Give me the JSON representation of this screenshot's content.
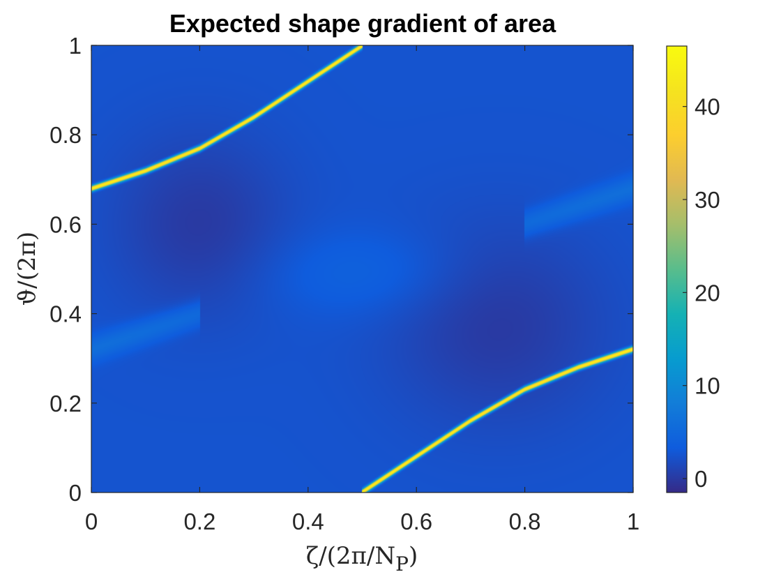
{
  "chart_data": {
    "type": "heatmap",
    "title": "Expected shape gradient of area",
    "xlabel": "ζ/(2π/N_P)",
    "ylabel": "ϑ/(2π)",
    "xlabel_parts": {
      "main": "ζ/(2π/N",
      "sub": "P",
      "tail": ")"
    },
    "xlim": [
      0,
      1
    ],
    "ylim": [
      0,
      1
    ],
    "x_ticks": [
      "0",
      "0.2",
      "0.4",
      "0.6",
      "0.8",
      "1"
    ],
    "y_ticks": [
      "0",
      "0.2",
      "0.4",
      "0.6",
      "0.8",
      "1"
    ],
    "colorbar": {
      "colormap": "parula",
      "range": [
        -1.5,
        46.5
      ],
      "ticks": [
        "0",
        "10",
        "20",
        "30",
        "40"
      ],
      "tick_values": [
        0,
        10,
        20,
        30,
        40
      ]
    },
    "features": {
      "background_level": 2.5,
      "ridge_curves": [
        {
          "points": [
            [
              0,
              0.68
            ],
            [
              0.1,
              0.72
            ],
            [
              0.2,
              0.77
            ],
            [
              0.3,
              0.84
            ],
            [
              0.4,
              0.92
            ],
            [
              0.5,
              1.0
            ]
          ],
          "peak": 46
        },
        {
          "points": [
            [
              0.5,
              0.0
            ],
            [
              0.6,
              0.08
            ],
            [
              0.7,
              0.16
            ],
            [
              0.8,
              0.23
            ],
            [
              0.9,
              0.28
            ],
            [
              1.0,
              0.32
            ]
          ],
          "peak": 46
        },
        {
          "points": [
            [
              0,
              0.32
            ],
            [
              0.1,
              0.36
            ],
            [
              0.2,
              0.4
            ]
          ],
          "peak": 6
        },
        {
          "points": [
            [
              0.8,
              0.6
            ],
            [
              0.9,
              0.64
            ],
            [
              1.0,
              0.68
            ]
          ],
          "peak": 6
        }
      ],
      "low_regions": [
        {
          "x": [
            0,
            0.4
          ],
          "y": [
            0.35,
            0.85
          ],
          "value": 0
        },
        {
          "x": [
            0.5,
            1.0
          ],
          "y": [
            0.1,
            0.65
          ],
          "value": 0
        }
      ]
    }
  }
}
